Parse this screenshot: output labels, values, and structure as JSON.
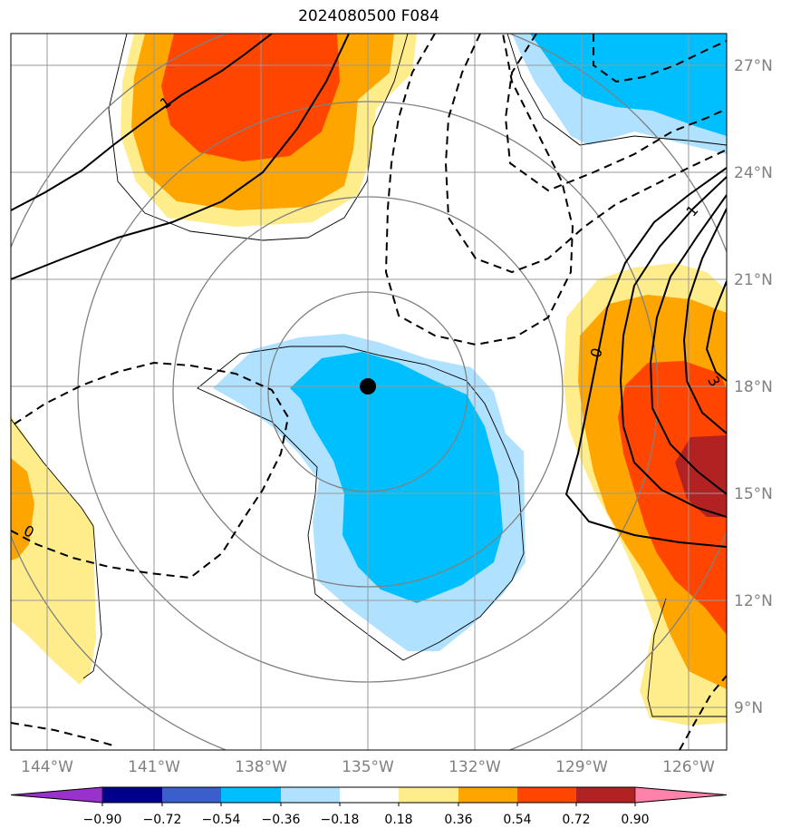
{
  "title": "2024080500 F084",
  "map": {
    "lat_labels": [
      {
        "lat": 27,
        "text": "27°N"
      },
      {
        "lat": 24,
        "text": "24°N"
      },
      {
        "lat": 21,
        "text": "21°N"
      },
      {
        "lat": 18,
        "text": "18°N"
      },
      {
        "lat": 15,
        "text": "15°N"
      },
      {
        "lat": 12,
        "text": "12°N"
      },
      {
        "lat": 9,
        "text": "9°N"
      }
    ],
    "lon_labels": [
      {
        "lon": -144,
        "text": "144°W"
      },
      {
        "lon": -141,
        "text": "141°W"
      },
      {
        "lon": -138,
        "text": "138°W"
      },
      {
        "lon": -135,
        "text": "135°W"
      },
      {
        "lon": -132,
        "text": "132°W"
      },
      {
        "lon": -129,
        "text": "129°W"
      },
      {
        "lon": -126,
        "text": "126°W"
      }
    ],
    "center_marker": {
      "lon": -135,
      "lat": 18
    },
    "contour_labels": [
      "1",
      "1",
      "0",
      "0",
      "3"
    ],
    "colors": {
      "grid": "#999999",
      "range_rings": "#808080",
      "contours": "#000000"
    }
  },
  "colorbar": {
    "tick_labels": [
      "−0.90",
      "−0.72",
      "−0.54",
      "−0.36",
      "−0.18",
      "0.18",
      "0.36",
      "0.54",
      "0.72",
      "0.90"
    ],
    "colors": [
      "#9932cc",
      "#00008b",
      "#3a5fcd",
      "#00bfff",
      "#b0e2ff",
      "#ffffff",
      "#ffec8b",
      "#ffa500",
      "#ff4500",
      "#b22222",
      "#ff82ab"
    ]
  }
}
